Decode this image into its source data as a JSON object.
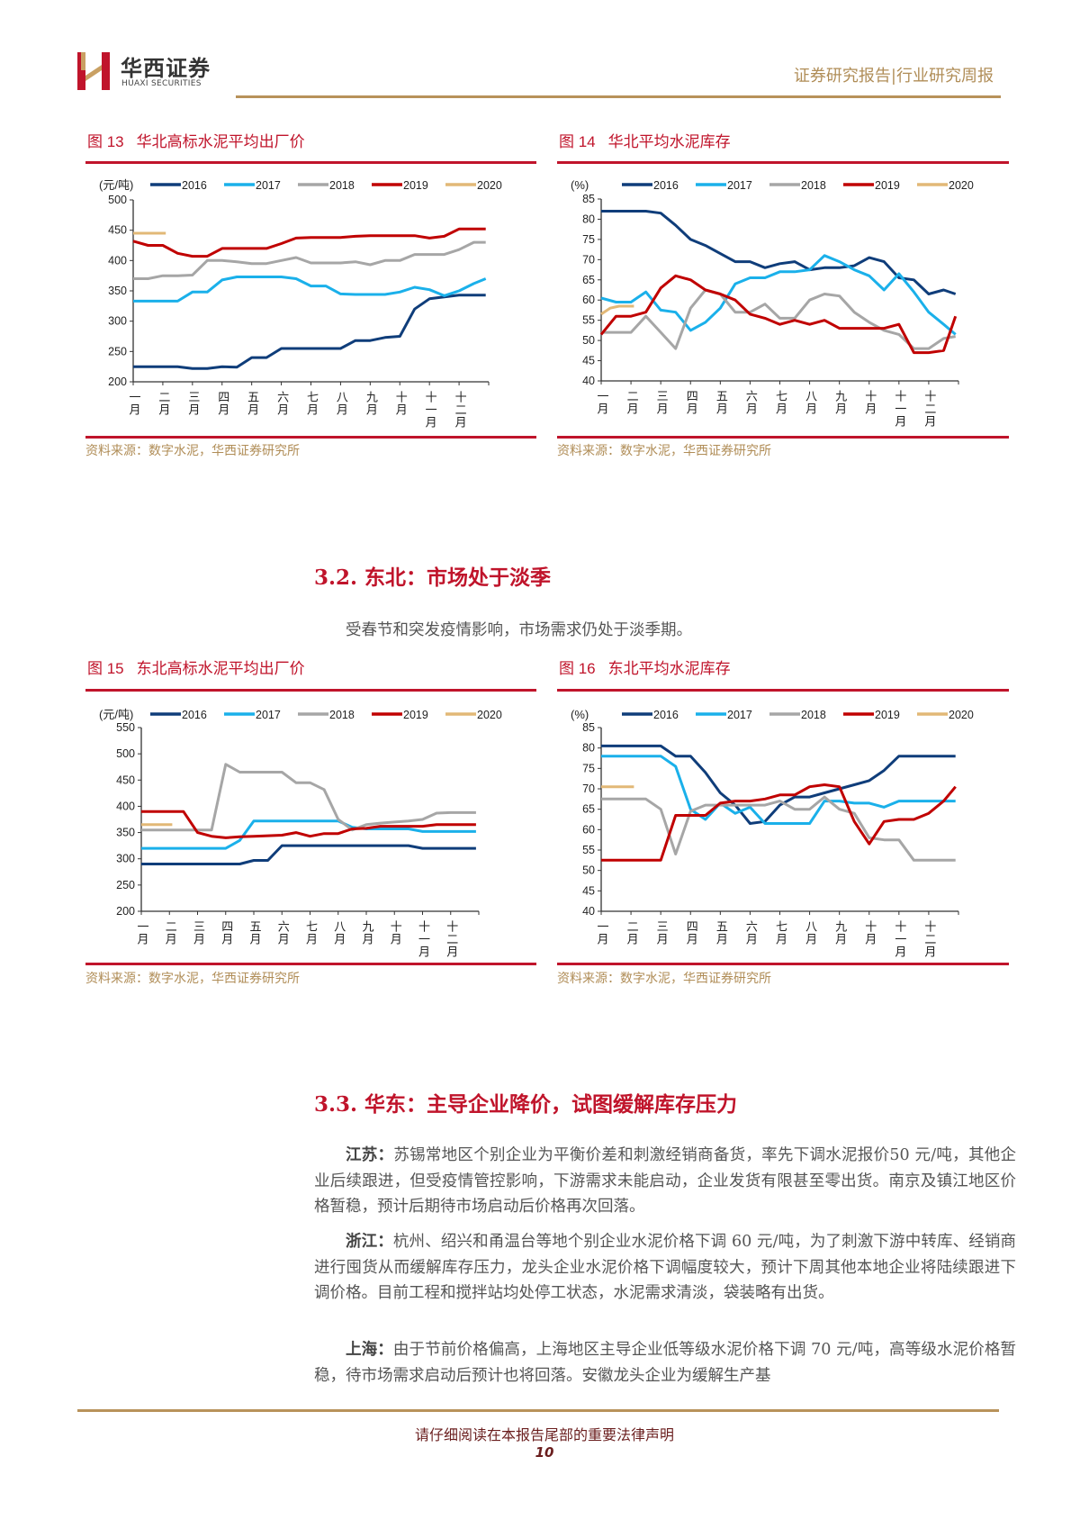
{
  "header": {
    "logo_cn": "华西证券",
    "logo_en": "HUAXI SECURITIES",
    "report_type": "证券研究报告|行业研究周报"
  },
  "colors": {
    "accent_red": "#c0142b",
    "gold": "#b8925a",
    "s2016": "#0f3d7a",
    "s2017": "#1ab0ea",
    "s2018": "#a6a6a6",
    "s2019": "#c00000",
    "s2020": "#e2b877"
  },
  "figures": [
    {
      "num": "图 13",
      "title": "华北高标水泥平均出厂价",
      "source": "资料来源：数字水泥，华西证券研究所"
    },
    {
      "num": "图 14",
      "title": "华北平均水泥库存",
      "source": "资料来源：数字水泥，华西证券研究所"
    },
    {
      "num": "图 15",
      "title": "东北高标水泥平均出厂价",
      "source": "资料来源：数字水泥，华西证券研究所"
    },
    {
      "num": "图 16",
      "title": "东北平均水泥库存",
      "source": "资料来源：数字水泥，华西证券研究所"
    }
  ],
  "sections": [
    {
      "heading": "3.2. 东北：市场处于淡季",
      "paragraphs": [
        {
          "lead": "",
          "text": "受春节和突发疫情影响，市场需求仍处于淡季期。"
        }
      ]
    },
    {
      "heading": "3.3. 华东：主导企业降价，试图缓解库存压力",
      "paragraphs": [
        {
          "lead": "江苏：",
          "text": "苏锡常地区个别企业为平衡价差和刺激经销商备货，率先下调水泥报价50 元/吨，其他企业后续跟进，但受疫情管控影响，下游需求未能启动，企业发货有限甚至零出货。南京及镇江地区价格暂稳，预计后期待市场启动后价格再次回落。"
        },
        {
          "lead": "浙江：",
          "text": "杭州、绍兴和甬温台等地个别企业水泥价格下调 60 元/吨，为了刺激下游中转库、经销商进行囤货从而缓解库存压力，龙头企业水泥价格下调幅度较大，预计下周其他本地企业将陆续跟进下调价格。目前工程和搅拌站均处停工状态，水泥需求清淡，袋装略有出货。"
        },
        {
          "lead": "上海：",
          "text": "由于节前价格偏高，上海地区主导企业低等级水泥价格下调 70 元/吨，高等级水泥价格暂稳，待市场需求启动后预计也将回落。安徽龙头企业为缓解生产基"
        }
      ]
    }
  ],
  "footer": {
    "disclaimer": "请仔细阅读在本报告尾部的重要法律声明",
    "page": "10"
  },
  "chart_data": [
    {
      "type": "line",
      "title": "华北高标水泥平均出厂价",
      "ylabel": "(元/吨)",
      "ylim": [
        200,
        500
      ],
      "yticks": [
        200,
        250,
        300,
        350,
        400,
        450,
        500
      ],
      "categories": [
        "一月",
        "二月",
        "三月",
        "四月",
        "五月",
        "六月",
        "七月",
        "八月",
        "九月",
        "十月",
        "十一月",
        "十二月"
      ],
      "legend": "top",
      "grid": false,
      "x": [
        1,
        1.5,
        2,
        2.5,
        3,
        3.5,
        4,
        4.5,
        5,
        5.5,
        6,
        6.5,
        7,
        7.5,
        8,
        8.5,
        9,
        9.5,
        10,
        10.5,
        11,
        11.5,
        12,
        12.5,
        12.9
      ],
      "series": [
        {
          "name": "2016",
          "color": "#0f3d7a",
          "values": [
            225,
            225,
            225,
            225,
            222,
            222,
            225,
            224,
            240,
            240,
            255,
            255,
            255,
            255,
            255,
            268,
            268,
            273,
            275,
            320,
            337,
            340,
            343,
            343,
            343
          ]
        },
        {
          "name": "2017",
          "color": "#1ab0ea",
          "values": [
            333,
            333,
            333,
            333,
            348,
            348,
            368,
            373,
            373,
            373,
            373,
            370,
            358,
            358,
            345,
            344,
            344,
            344,
            348,
            356,
            352,
            342,
            350,
            362,
            370
          ]
        },
        {
          "name": "2018",
          "color": "#a6a6a6",
          "values": [
            370,
            370,
            375,
            375,
            376,
            400,
            400,
            398,
            395,
            395,
            400,
            405,
            396,
            396,
            396,
            398,
            393,
            400,
            400,
            410,
            410,
            410,
            418,
            430,
            430
          ]
        },
        {
          "name": "2019",
          "color": "#c00000",
          "values": [
            432,
            425,
            425,
            412,
            407,
            407,
            420,
            420,
            420,
            420,
            428,
            437,
            438,
            438,
            438,
            440,
            441,
            441,
            441,
            441,
            437,
            440,
            452,
            452,
            452
          ]
        },
        {
          "name": "2020",
          "color": "#e2b877",
          "x": [
            1,
            2.1
          ],
          "values": [
            445,
            445
          ]
        }
      ]
    },
    {
      "type": "line",
      "title": "华北平均水泥库存",
      "ylabel": "(%)",
      "ylim": [
        40,
        85
      ],
      "yticks": [
        40,
        45,
        50,
        55,
        60,
        65,
        70,
        75,
        80,
        85
      ],
      "categories": [
        "一月",
        "二月",
        "三月",
        "四月",
        "五月",
        "六月",
        "七月",
        "八月",
        "九月",
        "十月",
        "十一月",
        "十二月"
      ],
      "legend": "top",
      "grid": false,
      "x": [
        1,
        1.5,
        2,
        2.5,
        3,
        3.5,
        4,
        4.5,
        5,
        5.5,
        6,
        6.5,
        7,
        7.5,
        8,
        8.5,
        9,
        9.5,
        10,
        10.5,
        11,
        11.5,
        12,
        12.5,
        12.9
      ],
      "series": [
        {
          "name": "2016",
          "color": "#0f3d7a",
          "values": [
            82,
            82,
            82,
            82,
            81.5,
            78.5,
            75,
            73.5,
            71.5,
            69.5,
            69.5,
            68,
            69,
            69.5,
            67.5,
            68,
            68,
            68.5,
            70.5,
            69.5,
            65.5,
            65,
            61.5,
            62.5,
            61.5
          ]
        },
        {
          "name": "2017",
          "color": "#1ab0ea",
          "values": [
            60.5,
            59.5,
            59.5,
            62,
            57.5,
            57,
            52.5,
            54.5,
            58,
            64,
            65.5,
            65.5,
            67,
            67,
            67.5,
            71,
            69.5,
            67.5,
            66,
            62.5,
            66.5,
            62,
            57,
            54,
            51.5
          ]
        },
        {
          "name": "2018",
          "color": "#a6a6a6",
          "values": [
            52,
            52,
            52,
            56,
            52,
            48,
            58,
            62.5,
            61.5,
            57,
            57,
            59,
            55.5,
            55.5,
            60,
            61.5,
            61,
            57,
            54.5,
            52.5,
            51.5,
            48,
            48,
            50.5,
            51
          ]
        },
        {
          "name": "2019",
          "color": "#c00000",
          "values": [
            51.5,
            56,
            56,
            57,
            63,
            66,
            65,
            62.5,
            61.5,
            60,
            56.5,
            55.5,
            54,
            55,
            54,
            55,
            53,
            53,
            53,
            53,
            54,
            47,
            47,
            47.5,
            56
          ]
        },
        {
          "name": "2020",
          "color": "#e2b877",
          "x": [
            1,
            1.3,
            1.6,
            2.1
          ],
          "values": [
            56.5,
            58,
            58.5,
            58.5
          ]
        }
      ]
    },
    {
      "type": "line",
      "title": "东北高标水泥平均出厂价",
      "ylabel": "(元/吨)",
      "ylim": [
        200,
        550
      ],
      "yticks": [
        200,
        250,
        300,
        350,
        400,
        450,
        500,
        550
      ],
      "categories": [
        "一月",
        "二月",
        "三月",
        "四月",
        "五月",
        "六月",
        "七月",
        "八月",
        "九月",
        "十月",
        "十一月",
        "十二月"
      ],
      "legend": "top",
      "grid": false,
      "x": [
        1,
        1.5,
        2,
        2.5,
        3,
        3.5,
        4,
        4.5,
        5,
        5.5,
        6,
        6.5,
        7,
        7.5,
        8,
        8.5,
        9,
        9.5,
        10,
        10.5,
        11,
        11.5,
        12,
        12.5,
        12.9
      ],
      "series": [
        {
          "name": "2016",
          "color": "#0f3d7a",
          "values": [
            290,
            290,
            290,
            290,
            290,
            290,
            290,
            290,
            297,
            297,
            325,
            325,
            325,
            325,
            325,
            325,
            325,
            325,
            325,
            325,
            320,
            320,
            320,
            320,
            320
          ]
        },
        {
          "name": "2017",
          "color": "#1ab0ea",
          "values": [
            320,
            320,
            320,
            320,
            320,
            320,
            320,
            335,
            372,
            372,
            372,
            372,
            372,
            372,
            372,
            360,
            357,
            357,
            357,
            357,
            352,
            352,
            352,
            352,
            352
          ]
        },
        {
          "name": "2018",
          "color": "#a6a6a6",
          "values": [
            355,
            355,
            355,
            355,
            355,
            355,
            480,
            465,
            465,
            465,
            465,
            445,
            445,
            432,
            375,
            355,
            365,
            368,
            370,
            372,
            375,
            387,
            388,
            388,
            388
          ]
        },
        {
          "name": "2019",
          "color": "#c00000",
          "values": [
            390,
            390,
            390,
            390,
            350,
            343,
            340,
            342,
            343,
            344,
            345,
            350,
            343,
            348,
            348,
            357,
            358,
            362,
            362,
            362,
            362,
            365,
            365,
            365,
            365
          ]
        },
        {
          "name": "2020",
          "color": "#e2b877",
          "x": [
            1,
            2.1
          ],
          "values": [
            365,
            365
          ]
        }
      ]
    },
    {
      "type": "line",
      "title": "东北平均水泥库存",
      "ylabel": "(%)",
      "ylim": [
        40,
        85
      ],
      "yticks": [
        40,
        45,
        50,
        55,
        60,
        65,
        70,
        75,
        80,
        85
      ],
      "categories": [
        "一月",
        "二月",
        "三月",
        "四月",
        "五月",
        "六月",
        "七月",
        "八月",
        "九月",
        "十月",
        "十一月",
        "十二月"
      ],
      "legend": "top",
      "grid": false,
      "x": [
        1,
        1.5,
        2,
        2.5,
        3,
        3.5,
        4,
        4.5,
        5,
        5.5,
        6,
        6.5,
        7,
        7.5,
        8,
        8.5,
        9,
        9.5,
        10,
        10.5,
        11,
        11.5,
        12,
        12.5,
        12.9
      ],
      "series": [
        {
          "name": "2016",
          "color": "#0f3d7a",
          "values": [
            80.5,
            80.5,
            80.5,
            80.5,
            80.5,
            78,
            78,
            74,
            69,
            66,
            61.5,
            62,
            66,
            68,
            68,
            69,
            70,
            71,
            72,
            74.5,
            78,
            78,
            78,
            78,
            78
          ]
        },
        {
          "name": "2017",
          "color": "#1ab0ea",
          "values": [
            78,
            78,
            78,
            78,
            78,
            75.5,
            65,
            62.5,
            66.5,
            64,
            65.5,
            61.5,
            61.5,
            61.5,
            61.5,
            67,
            67,
            66.5,
            66.5,
            65.5,
            67,
            67,
            67,
            67,
            67
          ]
        },
        {
          "name": "2018",
          "color": "#a6a6a6",
          "values": [
            67.5,
            67.5,
            67.5,
            67.5,
            65,
            54,
            64.5,
            66,
            66,
            66,
            66,
            66,
            67,
            65,
            65,
            68,
            65,
            64,
            58,
            57.5,
            57.5,
            52.5,
            52.5,
            52.5,
            52.5
          ]
        },
        {
          "name": "2019",
          "color": "#c00000",
          "values": [
            52.5,
            52.5,
            52.5,
            52.5,
            52.5,
            63.5,
            63.5,
            63.5,
            66.5,
            67,
            67,
            67.5,
            68.5,
            68.5,
            70.5,
            71,
            70.5,
            62,
            56.5,
            62,
            62.5,
            62.5,
            64,
            67,
            70.5
          ]
        },
        {
          "name": "2020",
          "color": "#e2b877",
          "x": [
            1,
            2.1
          ],
          "values": [
            70.5,
            70.5
          ]
        }
      ]
    }
  ]
}
